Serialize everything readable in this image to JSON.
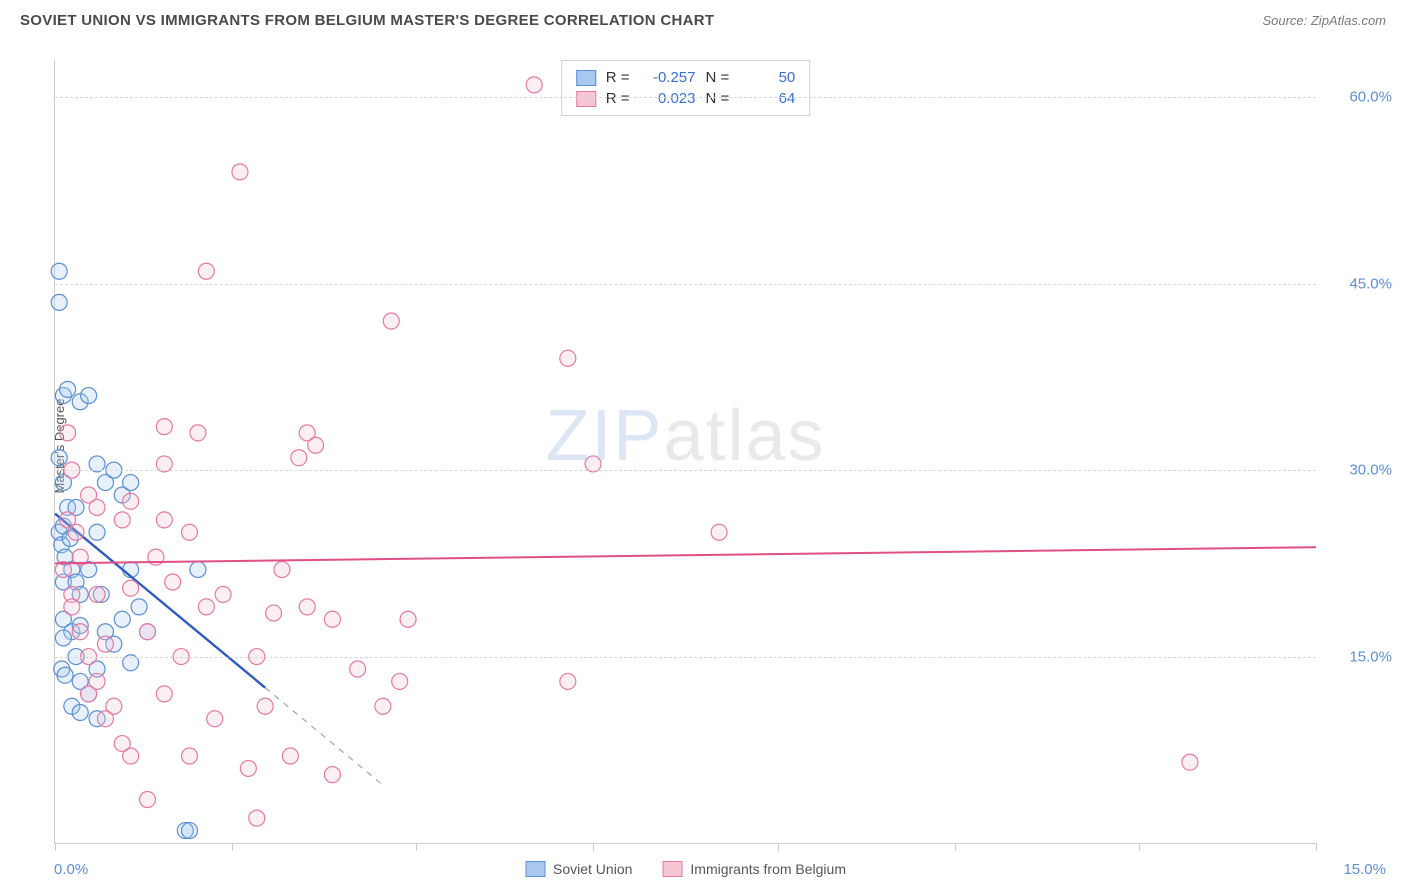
{
  "header": {
    "title": "SOVIET UNION VS IMMIGRANTS FROM BELGIUM MASTER'S DEGREE CORRELATION CHART",
    "source": "Source: ZipAtlas.com"
  },
  "watermark": {
    "part1": "ZIP",
    "part2": "atlas"
  },
  "chart": {
    "type": "scatter",
    "ylabel": "Master's Degree",
    "xlim": [
      0,
      15
    ],
    "ylim": [
      0,
      63
    ],
    "x_ticks": [
      0,
      2.1,
      4.3,
      6.4,
      8.6,
      10.7,
      12.9,
      15
    ],
    "x_tick_labels": {
      "left": "0.0%",
      "right": "15.0%"
    },
    "y_ticks": [
      15,
      30,
      45,
      60
    ],
    "y_tick_labels": [
      "15.0%",
      "30.0%",
      "45.0%",
      "60.0%"
    ],
    "background_color": "#ffffff",
    "grid_color": "#d8d8d8",
    "axis_color": "#cccccc",
    "label_color": "#5b8fd6",
    "marker_radius": 8,
    "marker_stroke_width": 1.2,
    "marker_fill_opacity": 0.28,
    "series": [
      {
        "name": "Soviet Union",
        "color_fill": "#a9c8ef",
        "color_stroke": "#5b8fd6",
        "R": "-0.257",
        "N": "50",
        "trend": {
          "x1": 0,
          "y1": 26.5,
          "x2": 2.5,
          "y2": 12.5,
          "extend_dash_to_x": 3.9,
          "color": "#2e5bbf",
          "width": 2.4
        },
        "points": [
          [
            0.05,
            46
          ],
          [
            0.05,
            43.5
          ],
          [
            0.1,
            36
          ],
          [
            0.15,
            36.5
          ],
          [
            0.3,
            35.5
          ],
          [
            0.4,
            36
          ],
          [
            0.05,
            31
          ],
          [
            0.1,
            29
          ],
          [
            0.15,
            27
          ],
          [
            0.25,
            27
          ],
          [
            0.05,
            25
          ],
          [
            0.1,
            25.5
          ],
          [
            0.08,
            24
          ],
          [
            0.12,
            23
          ],
          [
            0.18,
            24.5
          ],
          [
            0.2,
            22
          ],
          [
            0.1,
            21
          ],
          [
            0.25,
            21
          ],
          [
            0.3,
            20
          ],
          [
            0.5,
            30.5
          ],
          [
            0.6,
            29
          ],
          [
            0.5,
            25
          ],
          [
            0.4,
            22
          ],
          [
            0.55,
            20
          ],
          [
            0.7,
            30
          ],
          [
            0.8,
            28
          ],
          [
            0.9,
            29
          ],
          [
            0.9,
            22
          ],
          [
            0.1,
            18
          ],
          [
            0.2,
            17
          ],
          [
            0.3,
            17.5
          ],
          [
            0.1,
            16.5
          ],
          [
            0.25,
            15
          ],
          [
            0.08,
            14
          ],
          [
            0.12,
            13.5
          ],
          [
            0.3,
            13
          ],
          [
            0.5,
            14
          ],
          [
            0.6,
            17
          ],
          [
            0.7,
            16
          ],
          [
            0.8,
            18
          ],
          [
            0.9,
            14.5
          ],
          [
            1.0,
            19
          ],
          [
            1.1,
            17
          ],
          [
            0.4,
            12
          ],
          [
            0.2,
            11
          ],
          [
            0.3,
            10.5
          ],
          [
            0.5,
            10
          ],
          [
            1.55,
            1
          ],
          [
            1.6,
            1
          ],
          [
            1.7,
            22
          ]
        ]
      },
      {
        "name": "Immigrants from Belgium",
        "color_fill": "#f6c6d4",
        "color_stroke": "#e67aa0",
        "R": "0.023",
        "N": "64",
        "trend": {
          "x1": 0,
          "y1": 22.5,
          "x2": 15,
          "y2": 23.8,
          "color": "#e04f86",
          "width": 2
        },
        "points": [
          [
            5.7,
            61
          ],
          [
            2.2,
            54
          ],
          [
            1.8,
            46
          ],
          [
            4.0,
            42
          ],
          [
            6.1,
            39
          ],
          [
            1.3,
            33.5
          ],
          [
            1.7,
            33
          ],
          [
            3.0,
            33
          ],
          [
            3.1,
            32
          ],
          [
            2.9,
            31
          ],
          [
            1.3,
            30.5
          ],
          [
            0.4,
            28
          ],
          [
            0.5,
            27
          ],
          [
            0.8,
            26
          ],
          [
            0.9,
            27.5
          ],
          [
            1.3,
            26
          ],
          [
            1.6,
            25
          ],
          [
            6.4,
            30.5
          ],
          [
            7.9,
            25
          ],
          [
            2.7,
            22
          ],
          [
            1.2,
            23
          ],
          [
            0.3,
            23
          ],
          [
            0.2,
            20
          ],
          [
            0.5,
            20
          ],
          [
            0.9,
            20.5
          ],
          [
            1.4,
            21
          ],
          [
            1.8,
            19
          ],
          [
            2.0,
            20
          ],
          [
            2.6,
            18.5
          ],
          [
            3.0,
            19
          ],
          [
            3.3,
            18
          ],
          [
            4.2,
            18
          ],
          [
            1.1,
            17
          ],
          [
            0.6,
            16
          ],
          [
            1.5,
            15
          ],
          [
            2.4,
            15
          ],
          [
            3.6,
            14
          ],
          [
            4.1,
            13
          ],
          [
            6.1,
            13
          ],
          [
            0.4,
            12
          ],
          [
            0.7,
            11
          ],
          [
            1.3,
            12
          ],
          [
            1.9,
            10
          ],
          [
            2.5,
            11
          ],
          [
            0.9,
            7
          ],
          [
            1.6,
            7
          ],
          [
            2.3,
            6
          ],
          [
            2.8,
            7
          ],
          [
            3.3,
            5.5
          ],
          [
            3.9,
            11
          ],
          [
            1.1,
            3.5
          ],
          [
            2.4,
            2
          ],
          [
            13.5,
            6.5
          ],
          [
            0.15,
            33
          ],
          [
            0.2,
            30
          ],
          [
            0.15,
            26
          ],
          [
            0.25,
            25
          ],
          [
            0.1,
            22
          ],
          [
            0.2,
            19
          ],
          [
            0.3,
            17
          ],
          [
            0.4,
            15
          ],
          [
            0.5,
            13
          ],
          [
            0.6,
            10
          ],
          [
            0.8,
            8
          ]
        ]
      }
    ]
  },
  "legend_top": {
    "rows": [
      {
        "swatch_fill": "#a9c8ef",
        "swatch_stroke": "#5b8fd6",
        "r_label": "R =",
        "r_val": "-0.257",
        "n_label": "N =",
        "n_val": "50"
      },
      {
        "swatch_fill": "#f6c6d4",
        "swatch_stroke": "#e67aa0",
        "r_label": "R =",
        "r_val": "0.023",
        "n_label": "N =",
        "n_val": "64"
      }
    ]
  },
  "legend_bottom": {
    "items": [
      {
        "swatch_fill": "#a9c8ef",
        "swatch_stroke": "#5b8fd6",
        "label": "Soviet Union"
      },
      {
        "swatch_fill": "#f6c6d4",
        "swatch_stroke": "#e67aa0",
        "label": "Immigrants from Belgium"
      }
    ]
  }
}
